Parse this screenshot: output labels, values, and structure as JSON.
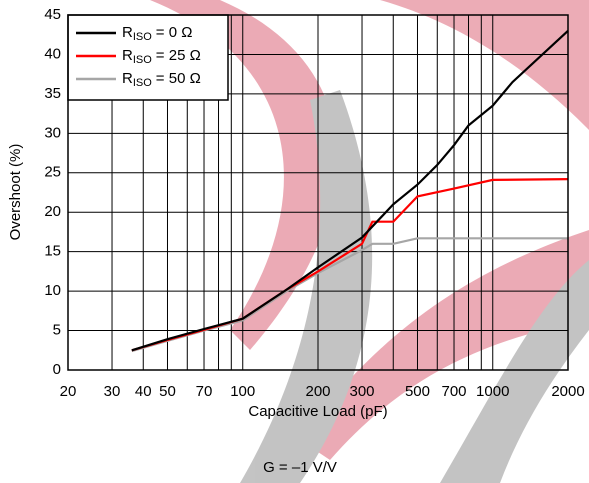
{
  "chart_data": {
    "type": "line",
    "xlabel": "Capacitive Load (pF)",
    "ylabel": "Overshoot (%)",
    "annotation": "G = –1 V/V",
    "xscale": "log",
    "grid": true,
    "xlim": [
      20,
      2000
    ],
    "xticks": [
      20,
      30,
      40,
      50,
      70,
      100,
      200,
      300,
      500,
      700,
      1000,
      2000
    ],
    "xminor": [
      60,
      80,
      90,
      400,
      600,
      800,
      900
    ],
    "ylim": [
      0,
      45
    ],
    "yticks": [
      0,
      5,
      10,
      15,
      20,
      25,
      30,
      35,
      40,
      45
    ],
    "legend_symbol": "R",
    "legend_subscript": "ISO",
    "legend": "upper left",
    "series": [
      {
        "name": "= 0 Ω",
        "color": "#000000",
        "x": [
          36,
          50,
          70,
          100,
          150,
          200,
          300,
          400,
          500,
          600,
          700,
          800,
          1000,
          1200,
          2000
        ],
        "values": [
          2.5,
          3.9,
          5.2,
          6.5,
          10.2,
          13,
          16.8,
          21,
          23.5,
          26,
          28.5,
          31,
          33.5,
          36.5,
          43
        ]
      },
      {
        "name": "= 25 Ω",
        "color": "#ff0000",
        "x": [
          36,
          50,
          70,
          100,
          150,
          200,
          300,
          330,
          400,
          500,
          700,
          1000,
          2000
        ],
        "values": [
          2.5,
          3.8,
          5.1,
          6.5,
          10.2,
          12.5,
          16,
          18.8,
          18.8,
          22,
          23,
          24.1,
          24.2
        ]
      },
      {
        "name": "= 50 Ω",
        "color": "#a6a6a6",
        "x": [
          36,
          50,
          70,
          100,
          150,
          200,
          300,
          330,
          400,
          500,
          1000,
          2000
        ],
        "values": [
          2.4,
          3.7,
          5,
          6.3,
          10,
          12.3,
          15.2,
          16,
          16,
          16.7,
          16.7,
          16.7
        ]
      }
    ]
  }
}
